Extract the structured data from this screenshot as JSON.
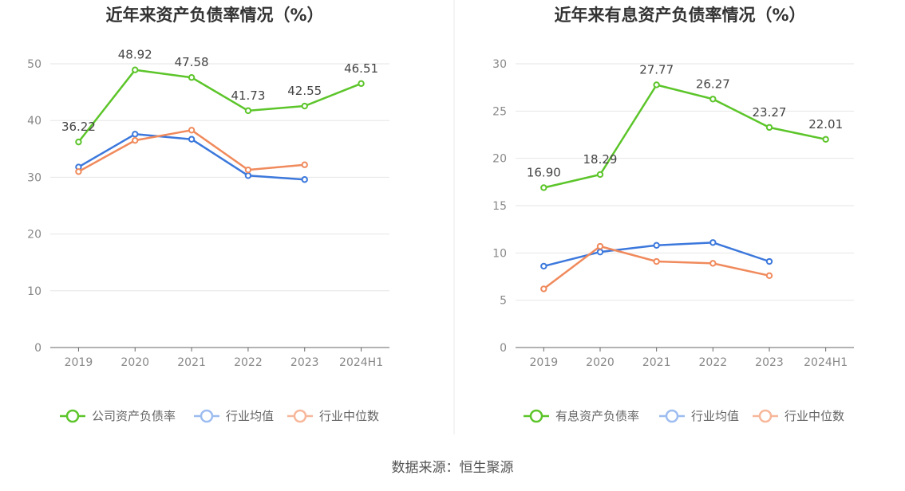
{
  "source_text": "数据来源：恒生聚源",
  "colors": {
    "green": "#5cc52a",
    "blue": "#3c78dc",
    "orange": "#f08a5c",
    "grid": "#e6e6e6",
    "axis": "#666666"
  },
  "chart_data": [
    {
      "type": "line",
      "title": "近年来资产负债率情况（%）",
      "categories": [
        "2019",
        "2020",
        "2021",
        "2022",
        "2023",
        "2024H1"
      ],
      "ylim": [
        0,
        50
      ],
      "yticks": [
        0,
        10,
        20,
        30,
        40,
        50
      ],
      "grid": true,
      "legend_position": "bottom",
      "series": [
        {
          "name": "公司资产负债率",
          "color": "#5cc52a",
          "values": [
            36.22,
            48.92,
            47.58,
            41.73,
            42.55,
            46.51
          ],
          "labels": [
            "36.22",
            "48.92",
            "47.58",
            "41.73",
            "42.55",
            "46.51"
          ]
        },
        {
          "name": "行业均值",
          "color": "#3c78dc",
          "values": [
            31.8,
            37.6,
            36.7,
            30.3,
            29.6,
            null
          ]
        },
        {
          "name": "行业中位数",
          "color": "#f08a5c",
          "values": [
            31.0,
            36.5,
            38.3,
            31.3,
            32.2,
            null
          ]
        }
      ]
    },
    {
      "type": "line",
      "title": "近年来有息资产负债率情况（%）",
      "categories": [
        "2019",
        "2020",
        "2021",
        "2022",
        "2023",
        "2024H1"
      ],
      "ylim": [
        0,
        30
      ],
      "yticks": [
        0,
        5,
        10,
        15,
        20,
        25,
        30
      ],
      "grid": true,
      "legend_position": "bottom",
      "series": [
        {
          "name": "有息资产负债率",
          "color": "#5cc52a",
          "values": [
            16.9,
            18.29,
            27.77,
            26.27,
            23.27,
            22.01
          ],
          "labels": [
            "16.90",
            "18.29",
            "27.77",
            "26.27",
            "23.27",
            "22.01"
          ]
        },
        {
          "name": "行业均值",
          "color": "#3c78dc",
          "values": [
            8.6,
            10.1,
            10.8,
            11.1,
            9.1,
            null
          ]
        },
        {
          "name": "行业中位数",
          "color": "#f08a5c",
          "values": [
            6.2,
            10.7,
            9.1,
            8.9,
            7.6,
            null
          ]
        }
      ]
    }
  ]
}
